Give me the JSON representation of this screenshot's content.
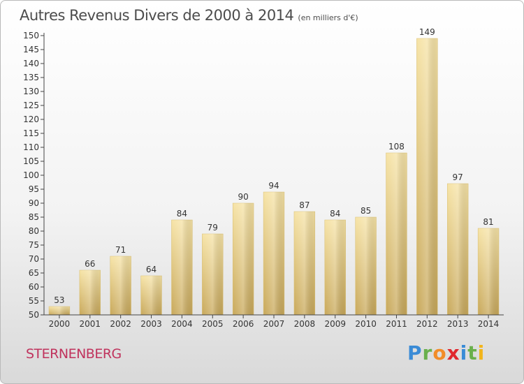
{
  "title": "Autres Revenus Divers de 2000 à 2014",
  "title_unit": "(en milliers d'€)",
  "city": "STERNENBERG",
  "logo": {
    "letters": [
      "P",
      "r",
      "o",
      "x",
      "i",
      "t",
      "i"
    ],
    "colors": [
      "#3a8bd6",
      "#6ab04c",
      "#f28c28",
      "#e0282e",
      "#3a8bd6",
      "#6ab04c",
      "#f2b51c"
    ]
  },
  "chart_data": {
    "type": "bar",
    "categories": [
      "2000",
      "2001",
      "2002",
      "2003",
      "2004",
      "2005",
      "2006",
      "2007",
      "2008",
      "2009",
      "2010",
      "2011",
      "2012",
      "2013",
      "2014"
    ],
    "values": [
      53,
      66,
      71,
      64,
      84,
      79,
      90,
      94,
      87,
      84,
      85,
      108,
      149,
      97,
      81
    ],
    "ylim": [
      50,
      150
    ],
    "ytick_step": 5,
    "grid": false,
    "bar_color": "#e8cf86"
  }
}
